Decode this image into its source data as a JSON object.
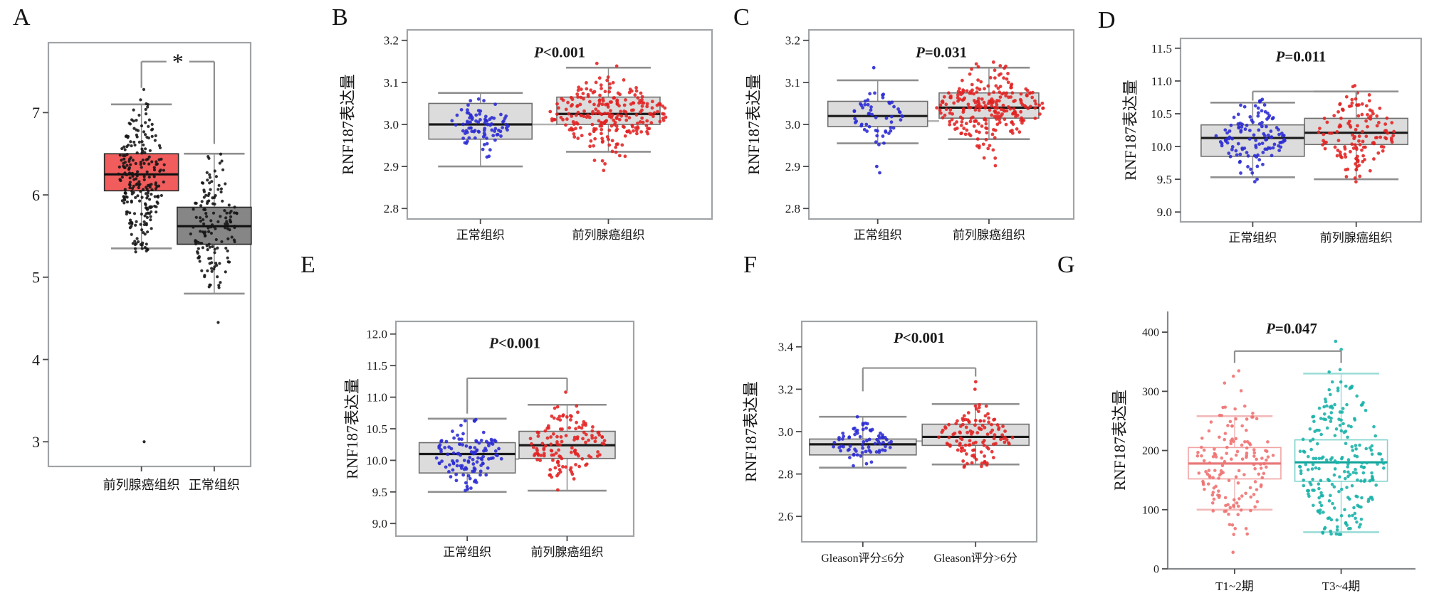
{
  "figure_title": "",
  "accent_colors": {
    "normal_blue": "#2a2ad4",
    "tumor_red": "#e32222",
    "boxA_red": "#f15c5c",
    "boxA_gray": "#868686",
    "box_gray": "#dcdcdc",
    "g_salmon": "#ef6f6f",
    "g_teal": "#16b1a7"
  },
  "chart_data": [
    {
      "panel": "A",
      "type": "boxplot",
      "ylabel": "",
      "frame": "full",
      "yticks": [
        "7",
        "6",
        "5",
        "4",
        "3"
      ],
      "ylim": [
        2.7,
        7.85
      ],
      "p_text": null,
      "p_y": null,
      "connector_y": null,
      "bracket": {
        "y": 7.62,
        "left_drop": 7.3,
        "right_drop": 6.62,
        "star": "*"
      },
      "categories": [
        "前列腺癌组织",
        "正常组织"
      ],
      "series": [
        {
          "name": "前列腺癌组织",
          "box": {
            "whisker_low": 5.35,
            "q1": 6.05,
            "median": 6.25,
            "q3": 6.5,
            "whisker_high": 7.1
          },
          "n": 250,
          "sd": 0.42,
          "spread": [
            5.28,
            7.36
          ],
          "outliers": [
            3.0
          ],
          "point_color": "#141414",
          "point_r": 2.1,
          "box_fill": "#f15c5c",
          "box_stroke": "#2a2a2a",
          "median_color": "#111111",
          "whisker_color": "#8f8f8f"
        },
        {
          "name": "正常组织",
          "box": {
            "whisker_low": 4.8,
            "q1": 5.4,
            "median": 5.62,
            "q3": 5.85,
            "whisker_high": 6.5
          },
          "n": 150,
          "sd": 0.38,
          "spread": [
            4.78,
            6.52
          ],
          "outliers": [
            4.45
          ],
          "point_color": "#141414",
          "point_r": 2.1,
          "box_fill": "#868686",
          "box_stroke": "#2a2a2a",
          "median_color": "#111111",
          "whisker_color": "#8f8f8f"
        }
      ]
    },
    {
      "panel": "B",
      "type": "boxplot",
      "ylabel": "RNF187表达量",
      "frame": "full",
      "yticks": [
        "3.2",
        "3.1",
        "3.0",
        "2.9",
        "2.8"
      ],
      "ylim": [
        2.775,
        3.225
      ],
      "p_text": "P<0.001",
      "p_y": 3.16,
      "connector_y": 3.0,
      "bracket": null,
      "categories": [
        "正常组织",
        "前列腺癌组织"
      ],
      "series": [
        {
          "name": "正常组织",
          "box": {
            "whisker_low": 2.9,
            "q1": 2.965,
            "median": 3.0,
            "q3": 3.05,
            "whisker_high": 3.075
          },
          "n": 90,
          "sd": 0.034,
          "spread": [
            2.9,
            3.08
          ],
          "outliers": [],
          "point_color": "#2a2ad4",
          "point_r": 2.4,
          "box_fill": "#dcdcdc",
          "box_stroke": "#6f6f6f",
          "median_color": "#1a1a1a",
          "whisker_color": "#8f8f8f"
        },
        {
          "name": "前列腺癌组织",
          "box": {
            "whisker_low": 2.935,
            "q1": 3.0,
            "median": 3.025,
            "q3": 3.065,
            "whisker_high": 3.135
          },
          "n": 250,
          "sd": 0.042,
          "spread": [
            2.87,
            3.16
          ],
          "outliers": [],
          "point_color": "#e32222",
          "point_r": 2.4,
          "box_fill": "#dcdcdc",
          "box_stroke": "#6f6f6f",
          "median_color": "#1a1a1a",
          "whisker_color": "#8f8f8f"
        }
      ]
    },
    {
      "panel": "C",
      "type": "boxplot",
      "ylabel": "RNF187表达量",
      "frame": "full",
      "yticks": [
        "3.2",
        "3.1",
        "3.0",
        "2.9",
        "2.8"
      ],
      "ylim": [
        2.775,
        3.225
      ],
      "p_text": "P=0.031",
      "p_y": 3.16,
      "connector_y": 3.008,
      "bracket": null,
      "categories": [
        "正常组织",
        "前列腺癌组织"
      ],
      "series": [
        {
          "name": "正常组织",
          "box": {
            "whisker_low": 2.955,
            "q1": 2.995,
            "median": 3.02,
            "q3": 3.055,
            "whisker_high": 3.105
          },
          "n": 55,
          "sd": 0.028,
          "spread": [
            2.95,
            3.11
          ],
          "outliers": [
            2.9,
            2.885,
            3.135
          ],
          "point_color": "#2a2ad4",
          "point_r": 2.4,
          "box_fill": "#dcdcdc",
          "box_stroke": "#6f6f6f",
          "median_color": "#1a1a1a",
          "whisker_color": "#8f8f8f"
        },
        {
          "name": "前列腺癌组织",
          "box": {
            "whisker_low": 2.965,
            "q1": 3.015,
            "median": 3.04,
            "q3": 3.075,
            "whisker_high": 3.135
          },
          "n": 250,
          "sd": 0.042,
          "spread": [
            2.9,
            3.17
          ],
          "outliers": [],
          "point_color": "#e32222",
          "point_r": 2.4,
          "box_fill": "#dcdcdc",
          "box_stroke": "#6f6f6f",
          "median_color": "#1a1a1a",
          "whisker_color": "#8f8f8f"
        }
      ]
    },
    {
      "panel": "D",
      "type": "boxplot",
      "ylabel": "RNF187表达量",
      "frame": "full",
      "yticks": [
        "11.5",
        "11.0",
        "10.5",
        "10.0",
        "9.5",
        "9.0"
      ],
      "ylim": [
        8.85,
        11.65
      ],
      "p_text": "P=0.011",
      "p_y": 11.3,
      "connector_y": 10.05,
      "bracket": {
        "y": 10.84,
        "left_drop": 10.7,
        "right_drop": 10.75,
        "star": null
      },
      "categories": [
        "正常组织",
        "前列腺癌组织"
      ],
      "series": [
        {
          "name": "正常组织",
          "box": {
            "whisker_low": 9.53,
            "q1": 9.85,
            "median": 10.13,
            "q3": 10.33,
            "whisker_high": 10.67
          },
          "n": 120,
          "sd": 0.27,
          "spread": [
            9.45,
            10.8
          ],
          "outliers": [],
          "point_color": "#2a2ad4",
          "point_r": 2.4,
          "box_fill": "#dcdcdc",
          "box_stroke": "#6f6f6f",
          "median_color": "#1a1a1a",
          "whisker_color": "#8f8f8f"
        },
        {
          "name": "前列腺癌组织",
          "box": {
            "whisker_low": 9.5,
            "q1": 10.03,
            "median": 10.21,
            "q3": 10.43,
            "whisker_high": 10.84
          },
          "n": 135,
          "sd": 0.3,
          "spread": [
            9.42,
            11.04
          ],
          "outliers": [],
          "point_color": "#e32222",
          "point_r": 2.4,
          "box_fill": "#dcdcdc",
          "box_stroke": "#6f6f6f",
          "median_color": "#1a1a1a",
          "whisker_color": "#8f8f8f"
        }
      ]
    },
    {
      "panel": "E",
      "type": "boxplot",
      "ylabel": "RNF187表达量",
      "frame": "full",
      "yticks": [
        "12.0",
        "11.5",
        "11.0",
        "10.5",
        "10.0",
        "9.5",
        "9.0"
      ],
      "ylim": [
        8.8,
        12.2
      ],
      "p_text": "P<0.001",
      "p_y": 11.78,
      "connector_y": 10.02,
      "bracket": {
        "y": 11.3,
        "left_drop": 10.74,
        "right_drop": 11.1,
        "star": null
      },
      "categories": [
        "正常组织",
        "前列腺癌组织"
      ],
      "series": [
        {
          "name": "正常组织",
          "box": {
            "whisker_low": 9.5,
            "q1": 9.8,
            "median": 10.1,
            "q3": 10.28,
            "whisker_high": 10.66
          },
          "n": 120,
          "sd": 0.26,
          "spread": [
            9.48,
            10.68
          ],
          "outliers": [],
          "point_color": "#2a2ad4",
          "point_r": 2.4,
          "box_fill": "#dcdcdc",
          "box_stroke": "#6f6f6f",
          "median_color": "#1a1a1a",
          "whisker_color": "#8f8f8f"
        },
        {
          "name": "前列腺癌组织",
          "box": {
            "whisker_low": 9.52,
            "q1": 10.03,
            "median": 10.24,
            "q3": 10.46,
            "whisker_high": 10.88
          },
          "n": 135,
          "sd": 0.3,
          "spread": [
            9.5,
            10.9
          ],
          "outliers": [
            11.08
          ],
          "point_color": "#e32222",
          "point_r": 2.4,
          "box_fill": "#dcdcdc",
          "box_stroke": "#6f6f6f",
          "median_color": "#1a1a1a",
          "whisker_color": "#8f8f8f"
        }
      ]
    },
    {
      "panel": "F",
      "type": "boxplot",
      "ylabel": "RNF187表达量",
      "frame": "full",
      "yticks": [
        "3.4",
        "3.2",
        "3.0",
        "2.8",
        "2.6"
      ],
      "ylim": [
        2.48,
        3.52
      ],
      "p_text": "P<0.001",
      "p_y": 3.42,
      "connector_y": 2.955,
      "bracket": {
        "y": 3.3,
        "left_drop": 3.19,
        "right_drop": 3.26,
        "star": null
      },
      "categories": [
        "Gleason评分≤6分",
        "Gleason评分>6分"
      ],
      "series": [
        {
          "name": "Gleason评分≤6分",
          "box": {
            "whisker_low": 2.83,
            "q1": 2.89,
            "median": 2.94,
            "q3": 2.965,
            "whisker_high": 3.07
          },
          "n": 75,
          "sd": 0.05,
          "spread": [
            2.82,
            3.08
          ],
          "outliers": [],
          "point_color": "#2a2ad4",
          "point_r": 2.4,
          "box_fill": "#dcdcdc",
          "box_stroke": "#6f6f6f",
          "median_color": "#1a1a1a",
          "whisker_color": "#8f8f8f"
        },
        {
          "name": "Gleason评分>6分",
          "box": {
            "whisker_low": 2.845,
            "q1": 2.935,
            "median": 2.975,
            "q3": 3.035,
            "whisker_high": 3.13
          },
          "n": 120,
          "sd": 0.065,
          "spread": [
            2.83,
            3.14
          ],
          "outliers": [
            3.2,
            3.235
          ],
          "point_color": "#e32222",
          "point_r": 2.4,
          "box_fill": "#dcdcdc",
          "box_stroke": "#6f6f6f",
          "median_color": "#1a1a1a",
          "whisker_color": "#8f8f8f"
        }
      ]
    },
    {
      "panel": "G",
      "type": "boxplot",
      "ylabel": "RNF187表达量",
      "frame": "axes",
      "yticks": [
        "400",
        "300",
        "200",
        "100",
        "0"
      ],
      "ylim": [
        0,
        435
      ],
      "p_text": "P=0.047",
      "p_y": 398,
      "connector_y": null,
      "bracket": {
        "y": 368,
        "left_drop": 348,
        "right_drop": 348,
        "star": null
      },
      "categories": [
        "T1~2期",
        "T3~4期"
      ],
      "series": [
        {
          "name": "T1~2期",
          "box": {
            "whisker_low": 100,
            "q1": 152,
            "median": 178,
            "q3": 205,
            "whisker_high": 258
          },
          "n": 150,
          "sd": 58,
          "spread": [
            55,
            360
          ],
          "outliers": [
            28
          ],
          "point_color": "#ef6f6f",
          "point_r": 2.3,
          "box_fill": "none",
          "box_stroke": "#f2a3a3",
          "median_color": "#e87979",
          "whisker_color": "#f2b9b9"
        },
        {
          "name": "T3~4期",
          "box": {
            "whisker_low": 62,
            "q1": 148,
            "median": 180,
            "q3": 218,
            "whisker_high": 330
          },
          "n": 230,
          "sd": 70,
          "spread": [
            58,
            392
          ],
          "outliers": [],
          "point_color": "#16b1a7",
          "point_r": 2.3,
          "box_fill": "none",
          "box_stroke": "#7fd4cd",
          "median_color": "#12a49b",
          "whisker_color": "#9adcd7"
        }
      ]
    }
  ]
}
